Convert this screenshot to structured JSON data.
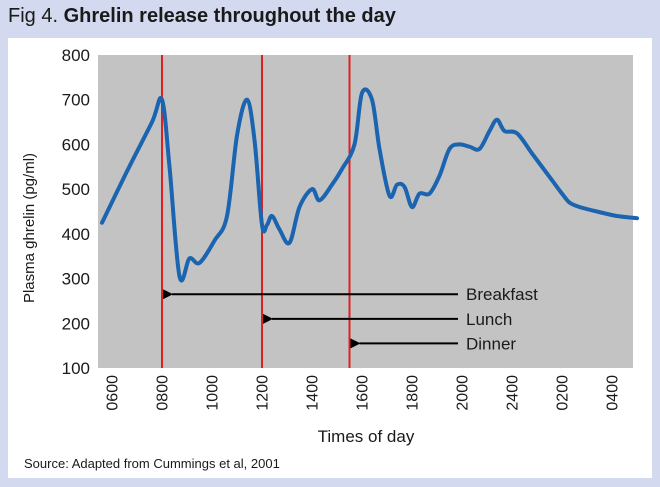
{
  "header": {
    "prefix": "Fig 4.",
    "title": "Ghrelin release throughout the day"
  },
  "source": "Source: Adapted from Cummings et al, 2001",
  "colors": {
    "background": "#d3d9ee",
    "plot_area": "#c3c3c3",
    "line": "#1a64b0",
    "meal_marker": "#e02020",
    "arrow": "#000000"
  },
  "chart_data": {
    "type": "line",
    "title": "Ghrelin release throughout the day",
    "xlabel": "Times of day",
    "ylabel": "Plasma ghrelin (pg/ml)",
    "ylim": [
      100,
      800
    ],
    "yticks": [
      100,
      200,
      300,
      400,
      500,
      600,
      700,
      800
    ],
    "xlim": [
      0,
      10.6
    ],
    "xticks": [
      {
        "x": 0,
        "label": "0600"
      },
      {
        "x": 1,
        "label": "0800"
      },
      {
        "x": 2,
        "label": "1000"
      },
      {
        "x": 3,
        "label": "1200"
      },
      {
        "x": 4,
        "label": "1400"
      },
      {
        "x": 5,
        "label": "1600"
      },
      {
        "x": 6,
        "label": "1800"
      },
      {
        "x": 7,
        "label": "2000"
      },
      {
        "x": 8,
        "label": "2400"
      },
      {
        "x": 9,
        "label": "0200"
      },
      {
        "x": 10,
        "label": "0400"
      }
    ],
    "series": [
      {
        "name": "Plasma ghrelin",
        "x": [
          -0.2,
          0.3,
          0.8,
          1.0,
          1.15,
          1.35,
          1.55,
          1.75,
          2.05,
          2.3,
          2.5,
          2.7,
          2.85,
          3.0,
          3.1,
          3.2,
          3.35,
          3.55,
          3.75,
          4.0,
          4.15,
          4.4,
          4.6,
          4.85,
          5.0,
          5.2,
          5.35,
          5.55,
          5.7,
          5.85,
          6.0,
          6.15,
          6.35,
          6.55,
          6.75,
          6.95,
          7.15,
          7.35,
          7.55,
          7.7,
          7.85,
          8.1,
          8.4,
          8.8,
          9.0,
          9.15,
          9.35,
          9.7,
          10.1,
          10.5
        ],
        "values": [
          425,
          540,
          650,
          700,
          550,
          305,
          345,
          335,
          385,
          440,
          620,
          700,
          610,
          420,
          420,
          440,
          410,
          380,
          460,
          500,
          475,
          510,
          545,
          600,
          715,
          700,
          590,
          485,
          510,
          505,
          460,
          490,
          490,
          530,
          590,
          600,
          595,
          590,
          630,
          655,
          630,
          625,
          580,
          520,
          490,
          470,
          460,
          450,
          440,
          435
        ]
      }
    ],
    "meals": [
      {
        "x": 1.0,
        "label": "Breakfast",
        "arrow_y": 265
      },
      {
        "x": 3.0,
        "label": "Lunch",
        "arrow_y": 210
      },
      {
        "x": 4.75,
        "label": "Dinner",
        "arrow_y": 155
      }
    ]
  }
}
